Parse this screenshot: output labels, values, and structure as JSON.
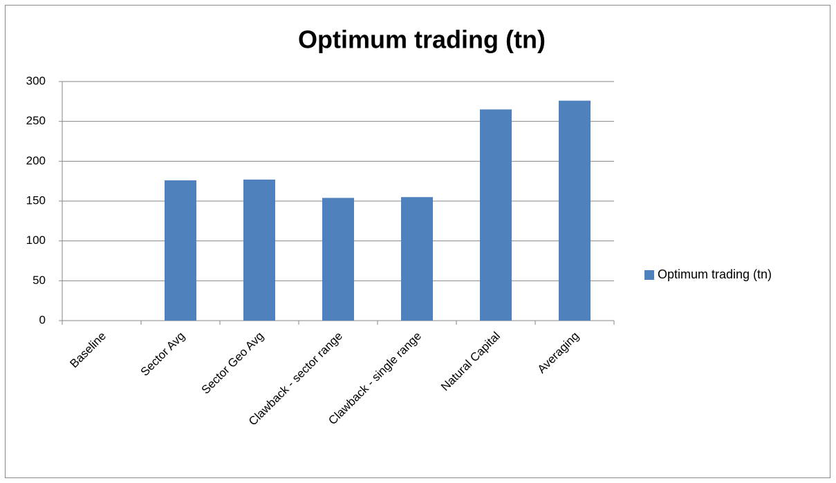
{
  "chart_data": {
    "type": "bar",
    "title": "Optimum trading (tn)",
    "categories": [
      "Baseline",
      "Sector Avg",
      "Sector Geo Avg",
      "Clawback - sector range",
      "Clawback - single range",
      "Natural Capital",
      "Averaging"
    ],
    "series": [
      {
        "name": "Optimum trading (tn)",
        "color": "#4f81bd",
        "values": [
          0,
          176,
          177,
          154,
          155,
          265,
          276
        ]
      }
    ],
    "ylim": [
      0,
      300
    ],
    "yticks": [
      0,
      50,
      100,
      150,
      200,
      250,
      300
    ],
    "grid": true,
    "legend": "right"
  }
}
